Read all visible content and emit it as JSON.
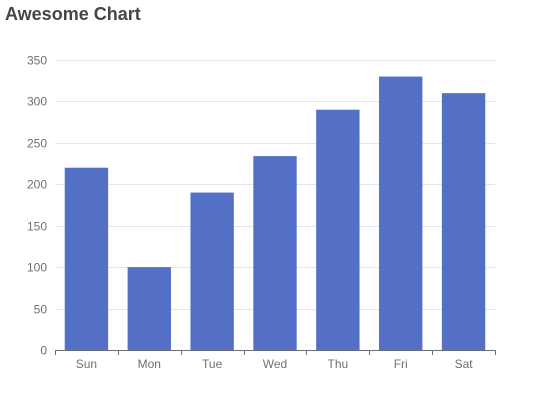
{
  "chart_data": {
    "type": "bar",
    "title": "Awesome Chart",
    "categories": [
      "Sun",
      "Mon",
      "Tue",
      "Wed",
      "Thu",
      "Fri",
      "Sat"
    ],
    "values": [
      220,
      100,
      190,
      234,
      290,
      330,
      310
    ],
    "ylim": [
      0,
      350
    ],
    "yticks": [
      0,
      50,
      100,
      150,
      200,
      250,
      300,
      350
    ],
    "grid": true,
    "bar_color": "#5470c6",
    "axis_color": "#6e7079",
    "grid_color": "#e0e6f1"
  }
}
